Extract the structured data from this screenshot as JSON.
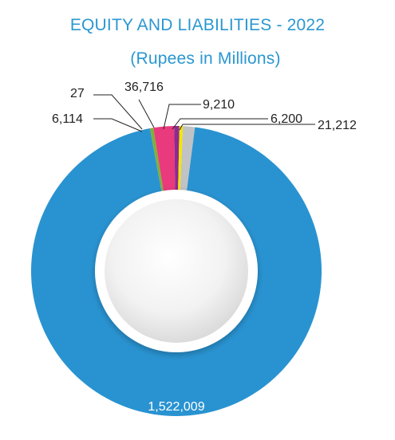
{
  "chart_data": {
    "type": "pie",
    "title": "EQUITY AND LIABILITIES - 2022",
    "subtitle": "(Rupees in Millions)",
    "slices": [
      {
        "value": 1522009,
        "label": "1,522,009",
        "color": "#2993d1"
      },
      {
        "value": 6114,
        "label": "6,114",
        "color": "#7fb03a"
      },
      {
        "value": 27,
        "label": "27",
        "color": "#f28c28"
      },
      {
        "value": 36716,
        "label": "36,716",
        "color": "#e83a7c"
      },
      {
        "value": 9210,
        "label": "9,210",
        "color": "#8e2a8f"
      },
      {
        "value": 6200,
        "label": "6,200",
        "color": "#f2e600"
      },
      {
        "value": 21212,
        "label": "21,212",
        "color": "#c0c2c4"
      }
    ],
    "donut": true
  }
}
